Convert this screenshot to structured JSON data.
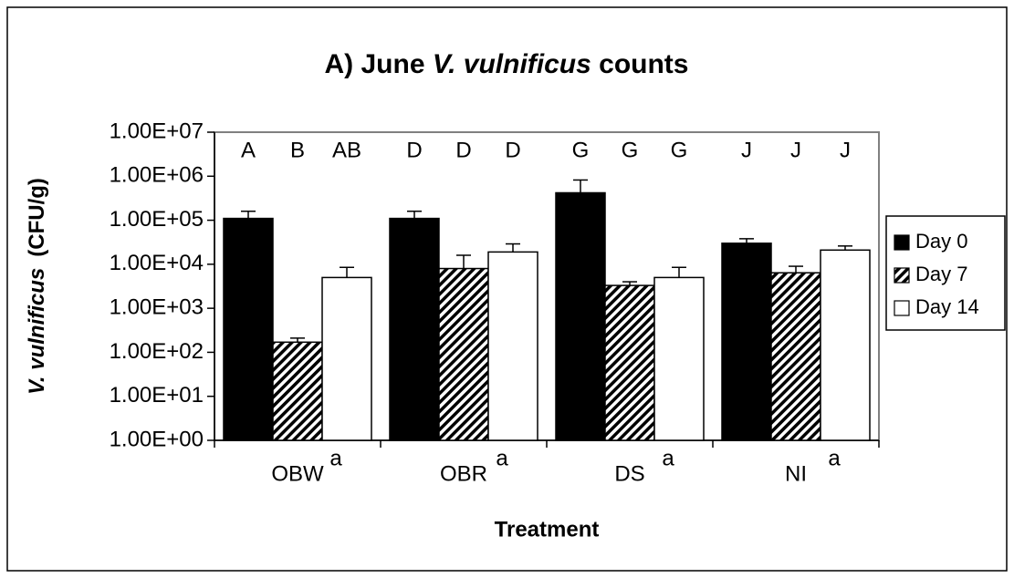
{
  "chart_data": {
    "type": "bar",
    "title": [
      "A) June ",
      "V. vulnificus",
      " counts"
    ],
    "y_label": [
      "V. vulnificus",
      "(CFU/g)"
    ],
    "x_label": "Treatment",
    "categories": [
      "OBW",
      "OBR",
      "DS",
      "NI"
    ],
    "category_superscripts": [
      "a",
      "a",
      "a",
      "a"
    ],
    "group_letters": [
      [
        "A",
        "B",
        "AB"
      ],
      [
        "D",
        "D",
        "D"
      ],
      [
        "G",
        "G",
        "G"
      ],
      [
        "J",
        "J",
        "J"
      ]
    ],
    "series": [
      {
        "name": "Day 0",
        "color": "#000000",
        "values": [
          110000,
          110000,
          420000,
          30000
        ],
        "errors": [
          50000,
          50000,
          400000,
          8000
        ]
      },
      {
        "name": "Day 7",
        "color": "#000000",
        "hatch": true,
        "values": [
          170,
          8000,
          3300,
          6400
        ],
        "errors": [
          40,
          8000,
          700,
          2600
        ]
      },
      {
        "name": "Day 14",
        "color": "#ffffff",
        "values": [
          5000,
          19000,
          5000,
          21000
        ],
        "errors": [
          3500,
          10000,
          3500,
          5000
        ]
      }
    ],
    "log_y": true,
    "ylim": [
      1,
      10000000
    ],
    "yticks": [
      {
        "value": 1,
        "label": "1.00E+00"
      },
      {
        "value": 10,
        "label": "1.00E+01"
      },
      {
        "value": 100,
        "label": "1.00E+02"
      },
      {
        "value": 1000,
        "label": "1.00E+03"
      },
      {
        "value": 10000,
        "label": "1.00E+04"
      },
      {
        "value": 100000,
        "label": "1.00E+05"
      },
      {
        "value": 1000000,
        "label": "1.00E+06"
      },
      {
        "value": 10000000,
        "label": "1.00E+07"
      }
    ],
    "grid": false,
    "legend": "right"
  }
}
